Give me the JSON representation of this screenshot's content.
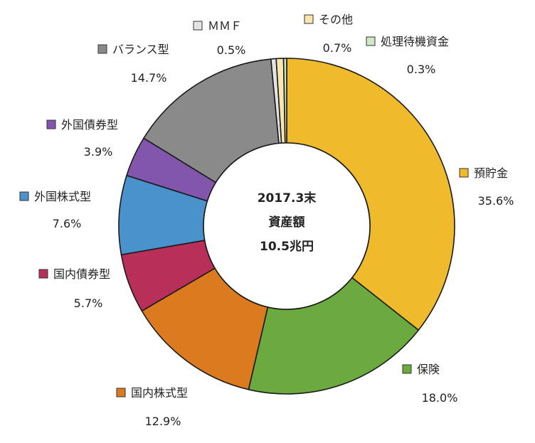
{
  "chart_data": {
    "type": "pie",
    "variant": "donut",
    "center_label": [
      "2017.3末",
      "資産額",
      "10.5兆円"
    ],
    "slices": [
      {
        "label": "預貯金",
        "value": 35.6,
        "value_label": "35.6%",
        "color": "#F0BA2D"
      },
      {
        "label": "保険",
        "value": 18.0,
        "value_label": "18.0%",
        "color": "#6BAA3E"
      },
      {
        "label": "国内株式型",
        "value": 12.9,
        "value_label": "12.9%",
        "color": "#DB7A1E"
      },
      {
        "label": "国内債券型",
        "value": 5.7,
        "value_label": "5.7%",
        "color": "#B8305A"
      },
      {
        "label": "外国株式型",
        "value": 7.6,
        "value_label": "7.6%",
        "color": "#4A92CB"
      },
      {
        "label": "外国債券型",
        "value": 3.9,
        "value_label": "3.9%",
        "color": "#8356AE"
      },
      {
        "label": "バランス型",
        "value": 14.7,
        "value_label": "14.7%",
        "color": "#8A8A8A"
      },
      {
        "label": "ＭＭＦ",
        "value": 0.5,
        "value_label": "0.5%",
        "color": "#E4E4E4"
      },
      {
        "label": "その他",
        "value": 0.7,
        "value_label": "0.7%",
        "color": "#F8E6AE"
      },
      {
        "label": "処理待機資金",
        "value": 0.3,
        "value_label": "0.3%",
        "color": "#CFE7C4"
      }
    ],
    "legend_placement": "labels-outside-ring"
  }
}
